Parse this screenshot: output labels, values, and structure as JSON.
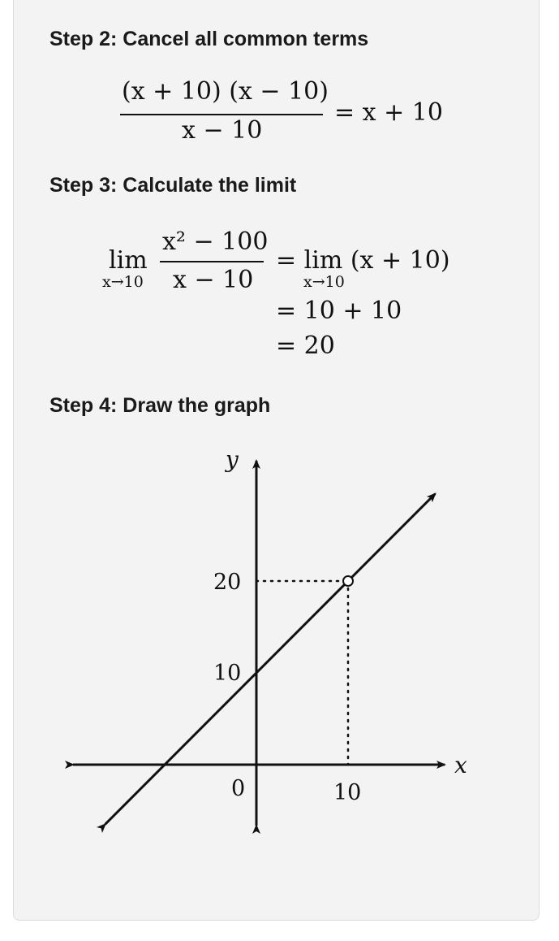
{
  "steps": [
    {
      "label": "Step 2: Cancel all common terms"
    },
    {
      "label": "Step 3: Calculate the limit"
    },
    {
      "label": "Step 4: Draw the graph"
    }
  ],
  "step2": {
    "numerator_left": "(x + 10)",
    "numerator_right": "(x − 10)",
    "denominator": "x − 10",
    "result": "= x + 10"
  },
  "step3": {
    "lim": "lim",
    "lim_sub": "x→10",
    "numerator": "x² − 100",
    "denominator": "x − 10",
    "line1_rhs": "= lim (x + 10)",
    "line2": "= 10 + 10",
    "line3": "= 20"
  },
  "chart_data": {
    "type": "line",
    "xlabel": "x",
    "ylabel": "y",
    "tick_labels": {
      "origin": "0",
      "x_ticks": [
        "10"
      ],
      "y_ticks": [
        "10",
        "20"
      ]
    },
    "series": [
      {
        "x": [
          -16.5,
          19.5
        ],
        "y": [
          -6.5,
          29.5
        ]
      }
    ],
    "open_point": {
      "x": 10,
      "y": 20
    },
    "guides": [
      {
        "from": [
          0,
          20
        ],
        "to": [
          10,
          20
        ]
      },
      {
        "from": [
          10,
          20
        ],
        "to": [
          10,
          0
        ]
      }
    ]
  }
}
